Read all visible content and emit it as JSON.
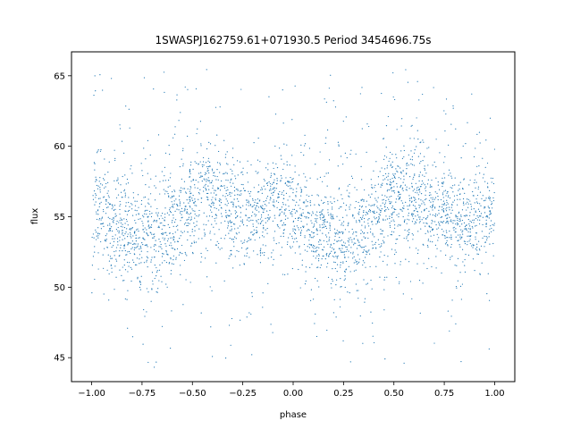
{
  "chart_data": {
    "type": "scatter",
    "title": "1SWASPJ162759.61+071930.5 Period 3454696.75s",
    "xlabel": "phase",
    "ylabel": "flux",
    "xlim": [
      -1.1,
      1.1
    ],
    "ylim": [
      43.3,
      66.7
    ],
    "x_ticks": [
      -1.0,
      -0.75,
      -0.5,
      -0.25,
      0.0,
      0.25,
      0.5,
      0.75,
      1.0
    ],
    "x_tick_labels": [
      "−1.00",
      "−0.75",
      "−0.50",
      "−0.25",
      "0.00",
      "0.25",
      "0.50",
      "0.75",
      "1.00"
    ],
    "y_ticks": [
      45,
      50,
      55,
      60,
      65
    ],
    "y_tick_labels": [
      "45",
      "50",
      "55",
      "60",
      "65"
    ],
    "grid": false,
    "legend": "none",
    "marker_color": "#1f77b4",
    "series": [
      {
        "x_range": [
          -1.0,
          1.0
        ],
        "trend_phase": [
          -1.0,
          -0.95,
          -0.9,
          -0.85,
          -0.8,
          -0.75,
          -0.7,
          -0.65,
          -0.6,
          -0.55,
          -0.5,
          -0.45,
          -0.4,
          -0.35,
          -0.3,
          -0.25,
          -0.2,
          -0.15,
          -0.1,
          -0.05,
          0.0,
          0.05,
          0.1,
          0.15,
          0.2,
          0.25,
          0.3,
          0.35,
          0.4,
          0.45,
          0.5,
          0.55,
          0.6,
          0.65,
          0.7,
          0.75,
          0.8,
          0.85,
          0.9,
          0.95,
          1.0
        ],
        "trend_flux": [
          55.5,
          55.2,
          54.8,
          54.3,
          53.9,
          53.6,
          53.5,
          53.9,
          54.6,
          55.5,
          56.3,
          56.6,
          56.4,
          55.9,
          55.3,
          54.9,
          55.0,
          55.6,
          56.2,
          55.9,
          55.2,
          54.6,
          54.1,
          53.7,
          53.4,
          53.3,
          53.6,
          54.2,
          54.9,
          55.6,
          56.1,
          56.3,
          56.2,
          55.9,
          55.6,
          55.2,
          54.9,
          54.7,
          54.8,
          55.2,
          55.5
        ],
        "core_spread": 2.4,
        "outlier_range": [
          44.3,
          65.7
        ]
      }
    ]
  }
}
